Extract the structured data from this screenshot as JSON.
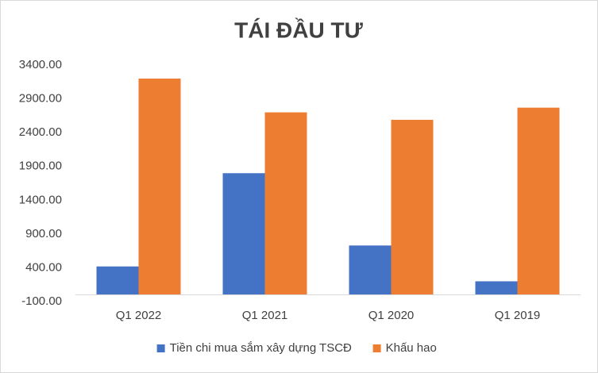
{
  "chart_data": {
    "type": "bar",
    "title": "TÁI ĐẦU TƯ",
    "categories": [
      "Q1 2022",
      "Q1 2021",
      "Q1 2020",
      "Q1 2019"
    ],
    "series": [
      {
        "name": "Tiền chi mua sắm xây dựng TSCĐ",
        "color": "#4472c4",
        "values": [
          420,
          1800,
          730,
          200
        ]
      },
      {
        "name": "Khấu hao",
        "color": "#ed7d31",
        "values": [
          3200,
          2700,
          2590,
          2770
        ]
      }
    ],
    "ylim": [
      -100,
      3400
    ],
    "yticks": [
      {
        "value": -100,
        "label": "-100.00"
      },
      {
        "value": 400,
        "label": "400.00"
      },
      {
        "value": 900,
        "label": "900.00"
      },
      {
        "value": 1400,
        "label": "1400.00"
      },
      {
        "value": 1900,
        "label": "1900.00"
      },
      {
        "value": 2400,
        "label": "2400.00"
      },
      {
        "value": 2900,
        "label": "2900.00"
      },
      {
        "value": 3400,
        "label": "3400.00"
      }
    ],
    "grid": false,
    "legend": "bottom"
  }
}
